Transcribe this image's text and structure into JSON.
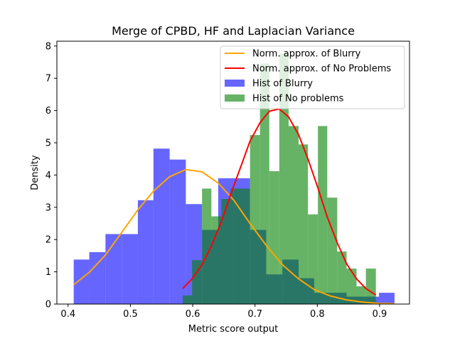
{
  "chart_data": {
    "type": "bar",
    "title": "Merge of CPBD, HF and Laplacian Variance",
    "xlabel": "Metric score output",
    "ylabel": "Density",
    "xlim": [
      0.382,
      0.948
    ],
    "ylim": [
      0,
      8.15
    ],
    "xticks": [
      0.4,
      0.5,
      0.6,
      0.7,
      0.8,
      0.9
    ],
    "yticks": [
      0,
      1,
      2,
      3,
      4,
      5,
      6,
      7,
      8
    ],
    "grid": false,
    "legend_position": "top-right",
    "histograms": [
      {
        "name": "Hist of Blurry",
        "color": "#0000ff",
        "opacity": 0.6,
        "bins": [
          [
            0.409,
            0.434,
            1.38
          ],
          [
            0.434,
            0.46,
            1.61
          ],
          [
            0.46,
            0.486,
            2.17
          ],
          [
            0.486,
            0.512,
            2.17
          ],
          [
            0.512,
            0.537,
            3.22
          ],
          [
            0.537,
            0.563,
            4.82
          ],
          [
            0.563,
            0.589,
            4.48
          ],
          [
            0.589,
            0.615,
            3.1
          ],
          [
            0.615,
            0.641,
            2.3
          ],
          [
            0.641,
            0.666,
            3.9
          ],
          [
            0.666,
            0.692,
            3.9
          ],
          [
            0.692,
            0.718,
            2.3
          ],
          [
            0.718,
            0.744,
            0.92
          ],
          [
            0.744,
            0.77,
            1.38
          ],
          [
            0.77,
            0.795,
            0.8
          ],
          [
            0.795,
            0.821,
            0.35
          ],
          [
            0.821,
            0.847,
            0.35
          ],
          [
            0.847,
            0.873,
            0.23
          ],
          [
            0.873,
            0.899,
            0.23
          ],
          [
            0.899,
            0.924,
            0.35
          ]
        ]
      },
      {
        "name": "Hist of No problems",
        "color": "#008000",
        "opacity": 0.6,
        "bins": [
          [
            0.584,
            0.599,
            0.27
          ],
          [
            0.599,
            0.615,
            1.36
          ],
          [
            0.615,
            0.63,
            3.58
          ],
          [
            0.63,
            0.646,
            2.72
          ],
          [
            0.646,
            0.661,
            3.26
          ],
          [
            0.661,
            0.677,
            3.58
          ],
          [
            0.677,
            0.692,
            3.58
          ],
          [
            0.692,
            0.708,
            5.24
          ],
          [
            0.708,
            0.723,
            7.46
          ],
          [
            0.723,
            0.739,
            4.12
          ],
          [
            0.739,
            0.754,
            7.76
          ],
          [
            0.754,
            0.77,
            5.52
          ],
          [
            0.77,
            0.785,
            4.95
          ],
          [
            0.785,
            0.801,
            2.78
          ],
          [
            0.801,
            0.816,
            5.52
          ],
          [
            0.816,
            0.832,
            3.3
          ],
          [
            0.832,
            0.847,
            1.63
          ],
          [
            0.847,
            0.863,
            1.1
          ],
          [
            0.863,
            0.878,
            0.55
          ],
          [
            0.878,
            0.894,
            1.1
          ]
        ]
      }
    ],
    "lines": [
      {
        "name": "Norm. approx. of Blurry",
        "color": "#ffa500",
        "x": [
          0.409,
          0.434,
          0.46,
          0.486,
          0.512,
          0.537,
          0.563,
          0.589,
          0.615,
          0.641,
          0.666,
          0.692,
          0.718,
          0.744,
          0.77,
          0.795,
          0.821,
          0.847,
          0.873,
          0.899,
          0.924
        ],
        "y": [
          0.6,
          0.98,
          1.52,
          2.22,
          2.92,
          3.5,
          3.95,
          4.17,
          4.1,
          3.75,
          3.22,
          2.5,
          1.82,
          1.22,
          0.78,
          0.45,
          0.25,
          0.13,
          0.06,
          0.02,
          0.01
        ]
      },
      {
        "name": "Norm. approx. of No Problems",
        "color": "#ff0000",
        "x": [
          0.584,
          0.599,
          0.615,
          0.63,
          0.646,
          0.661,
          0.677,
          0.692,
          0.708,
          0.723,
          0.739,
          0.754,
          0.77,
          0.785,
          0.801,
          0.816,
          0.832,
          0.847,
          0.863,
          0.878,
          0.894
        ],
        "y": [
          0.48,
          0.78,
          1.22,
          1.8,
          2.55,
          3.4,
          4.25,
          5.05,
          5.62,
          5.98,
          6.05,
          5.8,
          5.25,
          4.5,
          3.6,
          2.7,
          1.9,
          1.25,
          0.78,
          0.48,
          0.28
        ]
      }
    ]
  }
}
